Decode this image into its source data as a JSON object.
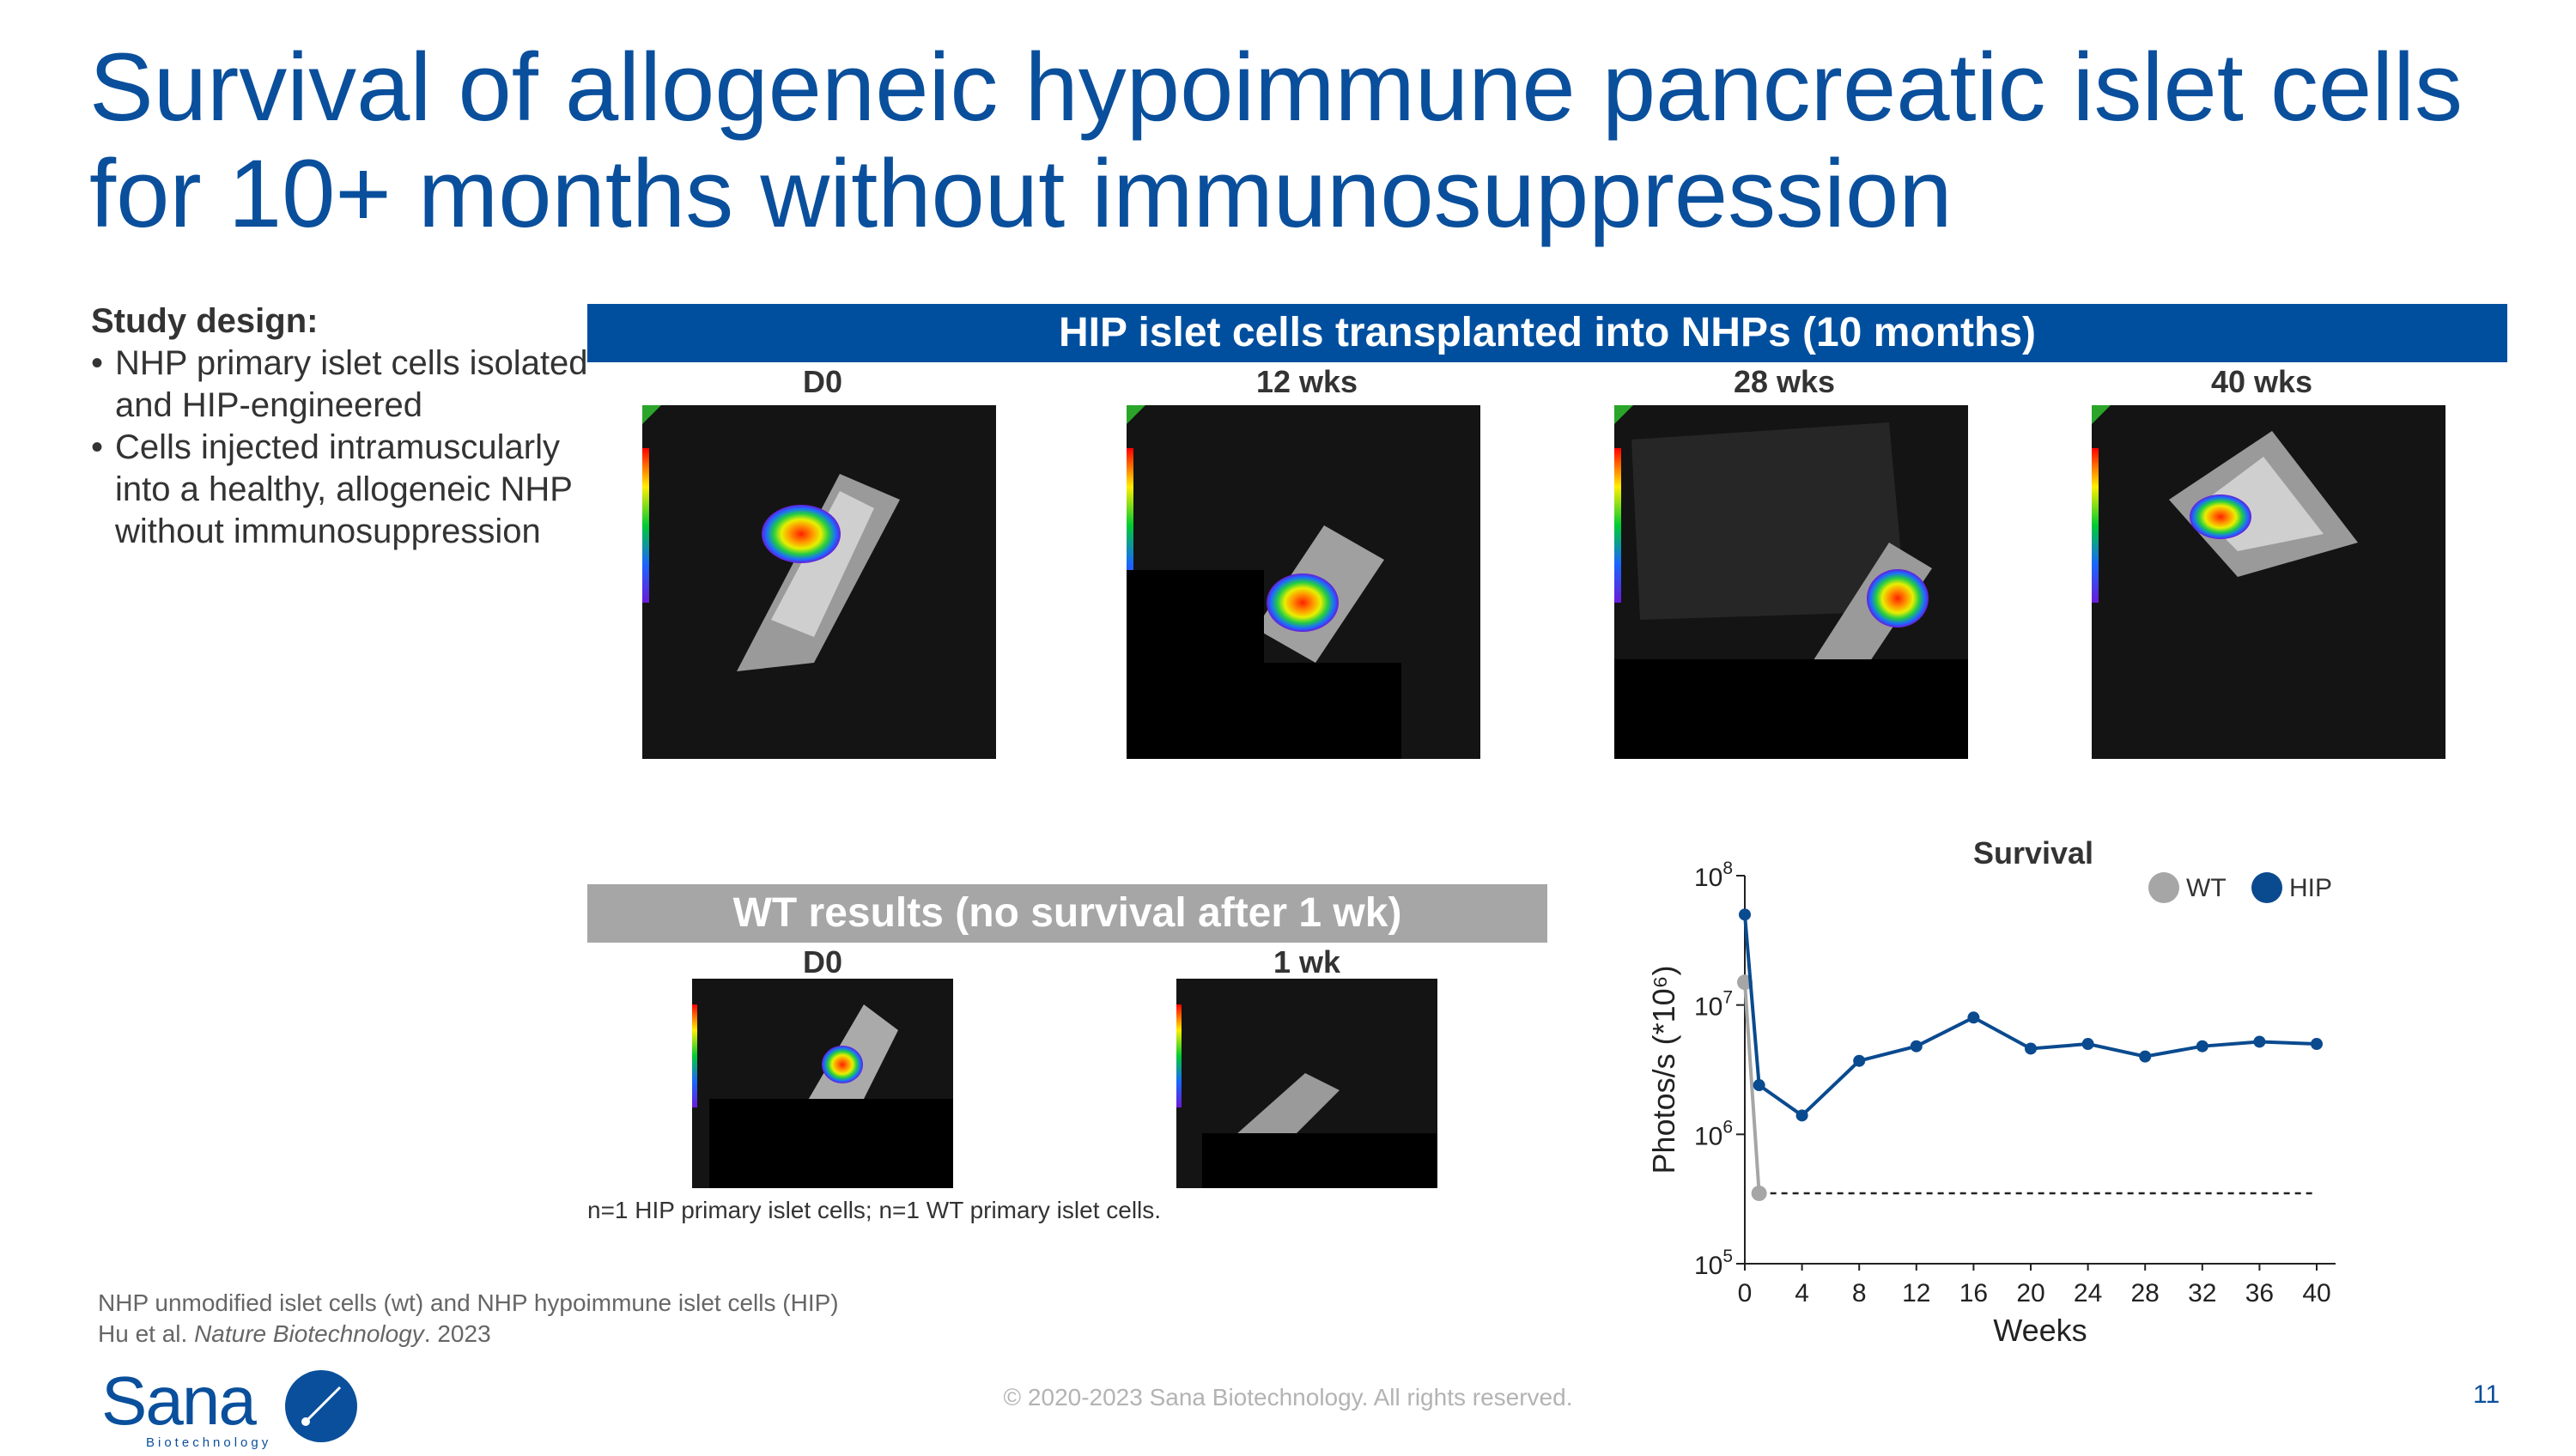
{
  "title": "Survival of allogeneic hypoimmune pancreatic islet cells for 10+ months without immunosuppression",
  "study_design": {
    "heading": "Study design:",
    "bullets": [
      "NHP primary islet cells isolated and HIP-engineered",
      "Cells injected intramuscularly into a healthy, allogeneic NHP without immunosuppression"
    ]
  },
  "hip_panel": {
    "header": "HIP islet cells transplanted into NHPs (10 months)",
    "timepoints": [
      "D0",
      "12 wks",
      "28 wks",
      "40 wks"
    ]
  },
  "wt_panel": {
    "header": "WT results (no survival after 1 wk)",
    "timepoints": [
      "D0",
      "1 wk"
    ]
  },
  "footnote": "n=1 HIP primary islet cells; n=1 WT primary islet cells.",
  "reference": {
    "line1": "NHP unmodified islet cells (wt) and NHP hypoimmune islet cells (HIP)",
    "authors": "Hu et al. ",
    "journal": "Nature Biotechnology",
    "year": ". 2023"
  },
  "copyright": "© 2020-2023 Sana Biotechnology. All rights reserved.",
  "page_number": "11",
  "logo": {
    "name": "Sana",
    "subtitle": "Biotechnology"
  },
  "colors": {
    "brand_blue": "#0a4f9c",
    "hip": "#0a4a8f",
    "wt": "#a6a6a6"
  },
  "chart_data": {
    "type": "line",
    "title": "Survival",
    "xlabel": "Weeks",
    "ylabel": "Photos/s (*10⁶)",
    "y_scale": "log",
    "ylim": [
      100000,
      100000000
    ],
    "y_ticks": [
      100000,
      1000000,
      10000000,
      100000000
    ],
    "y_tick_labels": [
      [
        "10",
        "5"
      ],
      [
        "10",
        "6"
      ],
      [
        "10",
        "7"
      ],
      [
        "10",
        "8"
      ]
    ],
    "xlim": [
      0,
      40
    ],
    "x_ticks": [
      0,
      4,
      8,
      12,
      16,
      20,
      24,
      28,
      32,
      36,
      40
    ],
    "legend_position": "top-right",
    "series": [
      {
        "name": "WT",
        "color": "#a6a6a6",
        "x": [
          0,
          1
        ],
        "y": [
          15000000,
          350000
        ]
      },
      {
        "name": "HIP",
        "color": "#0a4a8f",
        "x": [
          0,
          1,
          4,
          8,
          12,
          16,
          20,
          24,
          28,
          32,
          36,
          40
        ],
        "y": [
          50000000,
          2400000,
          1400000,
          3700000,
          4800000,
          8000000,
          4600000,
          5000000,
          4000000,
          4800000,
          5200000,
          5000000
        ]
      }
    ],
    "threshold": {
      "y": 350000,
      "style": "dashed"
    }
  }
}
